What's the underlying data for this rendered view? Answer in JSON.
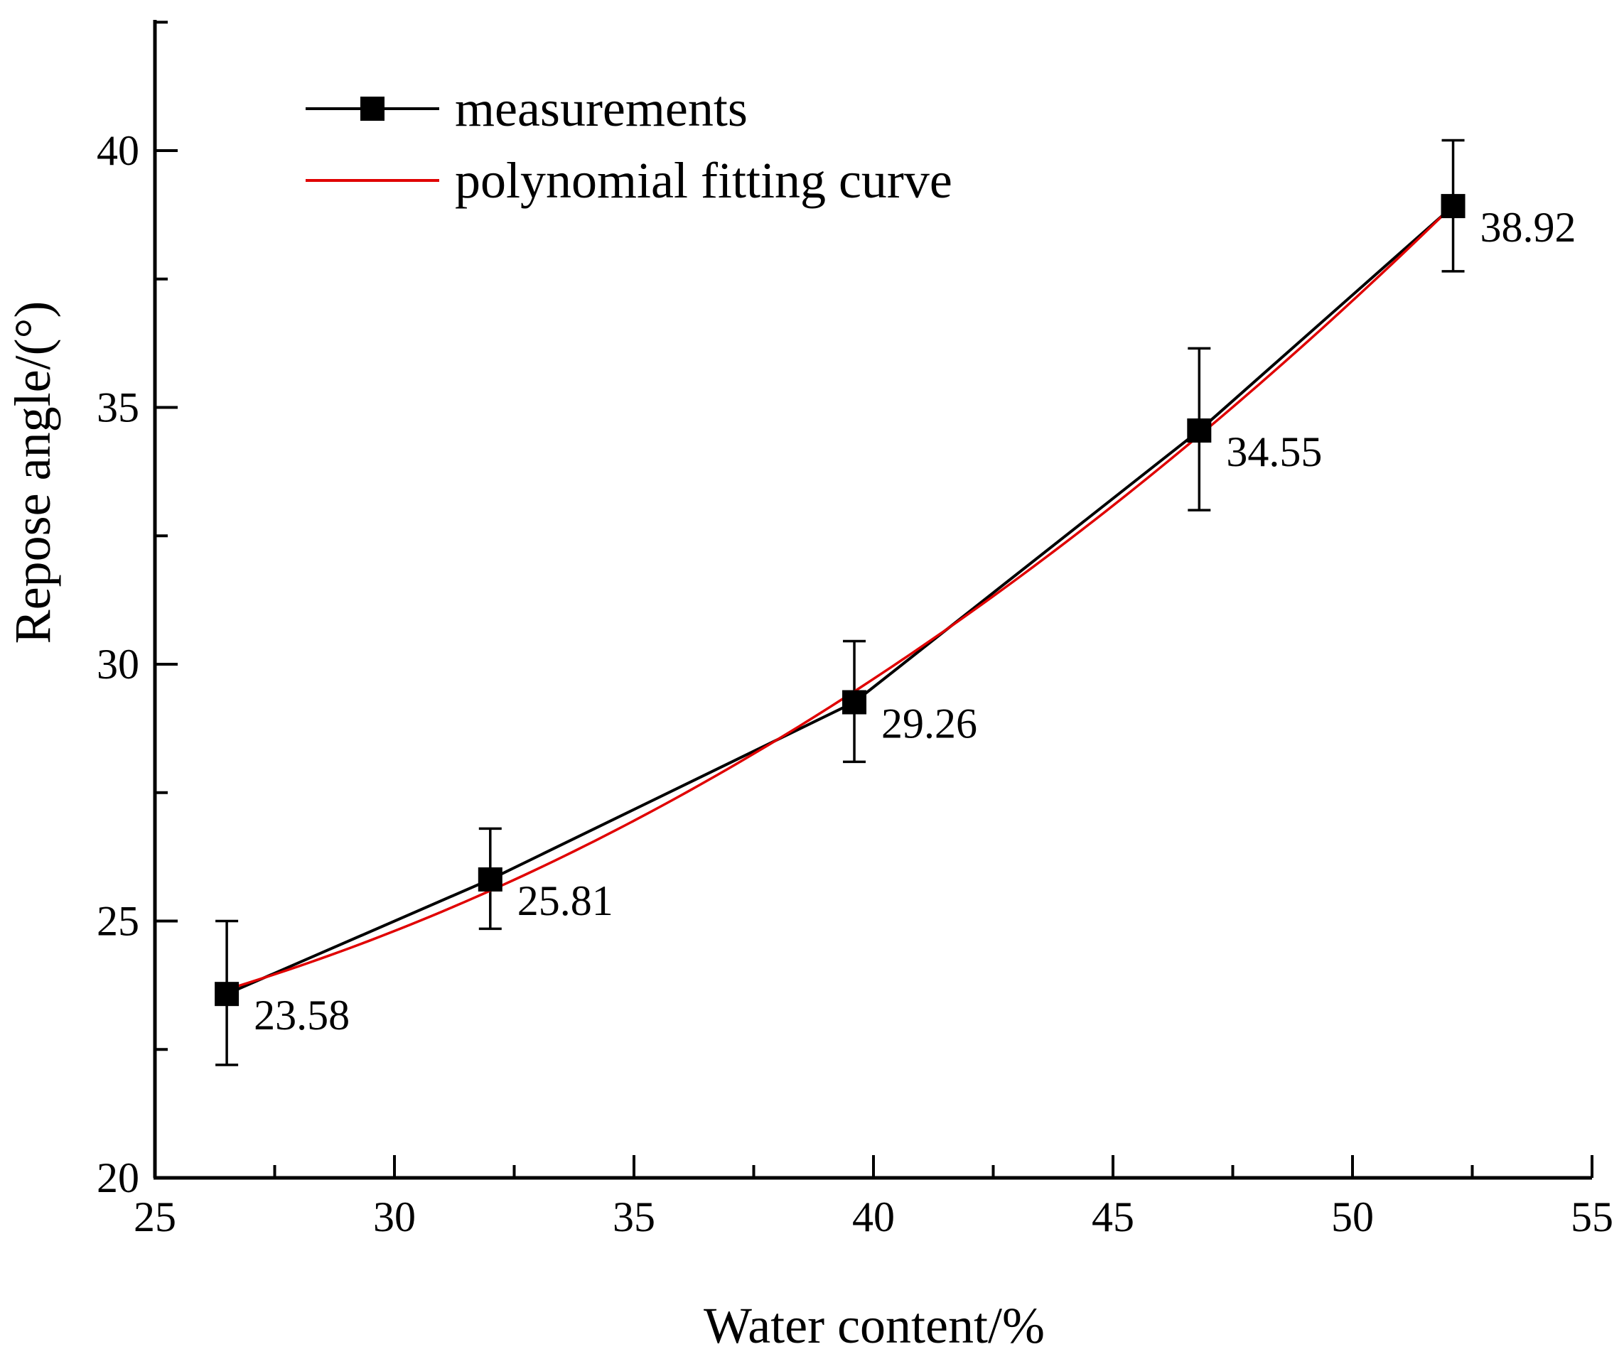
{
  "chart_data": {
    "type": "line",
    "title": "",
    "xlabel": "Water content/%",
    "ylabel": "Repose angle/(°)",
    "xlim": [
      25,
      55
    ],
    "ylim": [
      20,
      42
    ],
    "xticks": [
      25,
      30,
      35,
      40,
      45,
      50,
      55
    ],
    "yticks": [
      20,
      25,
      30,
      35,
      40
    ],
    "grid": false,
    "legend_position": "top-left",
    "series": [
      {
        "name": "measurements",
        "color": "#000000",
        "marker": "square",
        "x": [
          26.5,
          32.0,
          39.6,
          46.8,
          52.1
        ],
        "y": [
          23.58,
          25.81,
          29.26,
          34.55,
          38.92
        ],
        "error_low": [
          22.2,
          24.85,
          28.1,
          33.0,
          37.65
        ],
        "error_high": [
          25.0,
          26.8,
          30.45,
          36.15,
          40.2
        ],
        "labels": [
          "23.58",
          "25.81",
          "29.26",
          "34.55",
          "38.92"
        ]
      },
      {
        "name": "polynomial fitting curve",
        "color": "#e00000",
        "marker": "none",
        "fit": "quadratic",
        "x_range": [
          26.5,
          52.1
        ]
      }
    ]
  }
}
